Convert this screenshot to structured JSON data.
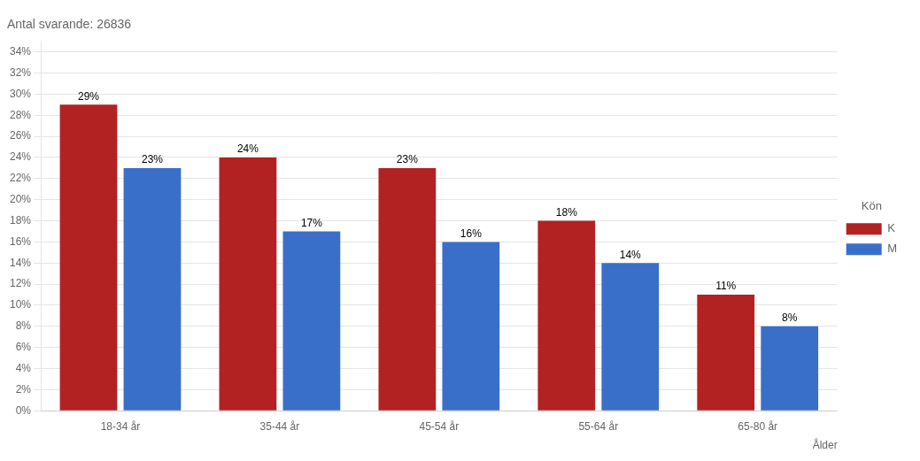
{
  "chart_data": {
    "type": "bar",
    "title": "Antal svarande: 26836",
    "xlabel": "Ålder",
    "categories": [
      "18-34 år",
      "35-44 år",
      "45-54 år",
      "55-64 år",
      "65-80 år"
    ],
    "series": [
      {
        "name": "K",
        "color": "#b22222",
        "values": [
          29,
          24,
          23,
          18,
          11
        ],
        "value_labels": [
          "29%",
          "24%",
          "23%",
          "18%",
          "11%"
        ]
      },
      {
        "name": "M",
        "color": "#3a6fc9",
        "values": [
          23,
          17,
          16,
          14,
          8
        ],
        "value_labels": [
          "23%",
          "17%",
          "16%",
          "14%",
          "8%"
        ]
      }
    ],
    "ylim": [
      0,
      35
    ],
    "yticks": [
      {
        "value": 0,
        "label": "0%"
      },
      {
        "value": 2,
        "label": "2%"
      },
      {
        "value": 4,
        "label": "4%"
      },
      {
        "value": 6,
        "label": "6%"
      },
      {
        "value": 8,
        "label": "8%"
      },
      {
        "value": 10,
        "label": "10%"
      },
      {
        "value": 12,
        "label": "12%"
      },
      {
        "value": 14,
        "label": "14%"
      },
      {
        "value": 16,
        "label": "16%"
      },
      {
        "value": 18,
        "label": "18%"
      },
      {
        "value": 20,
        "label": "20%"
      },
      {
        "value": 22,
        "label": "22%"
      },
      {
        "value": 24,
        "label": "24%"
      },
      {
        "value": 26,
        "label": "26%"
      },
      {
        "value": 28,
        "label": "28%"
      },
      {
        "value": 30,
        "label": "30%"
      },
      {
        "value": 32,
        "label": "32%"
      },
      {
        "value": 34,
        "label": "34%"
      }
    ],
    "legend_title": "Kön",
    "legend": "right",
    "grid": true,
    "data_labels": true
  }
}
